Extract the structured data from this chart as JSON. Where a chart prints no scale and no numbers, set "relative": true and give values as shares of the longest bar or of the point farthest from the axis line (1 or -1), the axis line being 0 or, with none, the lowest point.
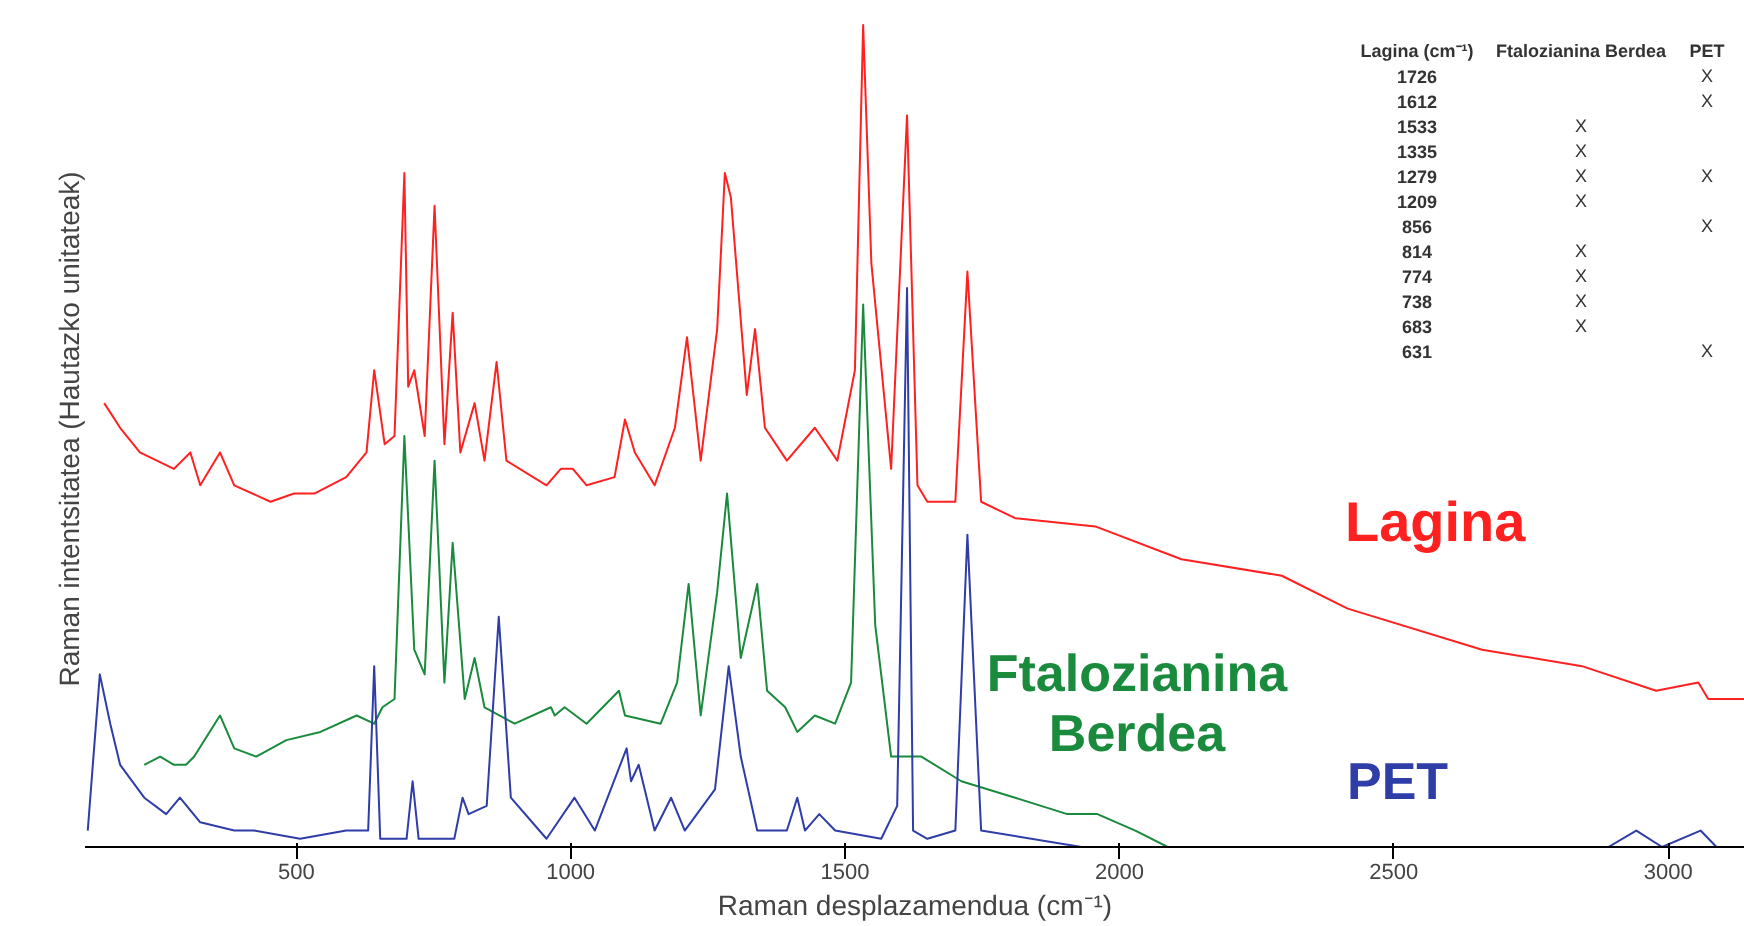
{
  "chart_data": {
    "type": "line",
    "relative": true,
    "xlabel": "Raman desplazamendua (cm⁻¹)",
    "ylabel": "Raman intentsitatea (Hautazko unitateak)",
    "xlim": [
      115,
      3140
    ],
    "xticks": [
      500,
      1000,
      1500,
      2000,
      2500,
      3000
    ],
    "grid": false,
    "marker": "none",
    "line_style": "solid",
    "series": [
      {
        "name": "Lagina",
        "color": "#ff2020",
        "x": [
          150,
          179,
          215,
          277,
          307,
          325,
          361,
          387,
          453,
          496,
          533,
          591,
          628,
          642,
          661,
          679,
          697,
          704,
          715,
          734,
          752,
          770,
          785,
          799,
          825,
          843,
          865,
          883,
          956,
          982,
          1004,
          1029,
          1080,
          1099,
          1117,
          1153,
          1190,
          1212,
          1237,
          1267,
          1281,
          1292,
          1321,
          1336,
          1354,
          1394,
          1445,
          1486,
          1518,
          1533,
          1548,
          1584,
          1613,
          1632,
          1650,
          1701,
          1723,
          1748,
          1810,
          1956,
          2113,
          2296,
          2416,
          2661,
          2843,
          2978,
          3055,
          3073,
          3140
        ],
        "values": [
          0.54,
          0.51,
          0.48,
          0.46,
          0.48,
          0.44,
          0.48,
          0.44,
          0.42,
          0.43,
          0.43,
          0.45,
          0.48,
          0.58,
          0.49,
          0.5,
          0.82,
          0.56,
          0.58,
          0.5,
          0.78,
          0.49,
          0.65,
          0.48,
          0.54,
          0.47,
          0.59,
          0.47,
          0.44,
          0.46,
          0.46,
          0.44,
          0.45,
          0.52,
          0.48,
          0.44,
          0.51,
          0.62,
          0.47,
          0.63,
          0.82,
          0.79,
          0.55,
          0.63,
          0.51,
          0.47,
          0.51,
          0.47,
          0.58,
          1.0,
          0.71,
          0.46,
          0.89,
          0.44,
          0.42,
          0.42,
          0.7,
          0.42,
          0.4,
          0.39,
          0.35,
          0.33,
          0.29,
          0.24,
          0.22,
          0.19,
          0.2,
          0.18,
          0.18
        ]
      },
      {
        "name": "Ftalozianina Berdea",
        "color": "#1a8a3c",
        "x": [
          223,
          252,
          277,
          299,
          314,
          361,
          387,
          427,
          482,
          544,
          610,
          642,
          657,
          679,
          697,
          715,
          734,
          752,
          770,
          785,
          807,
          825,
          843,
          898,
          964,
          971,
          989,
          1029,
          1088,
          1099,
          1164,
          1194,
          1215,
          1237,
          1267,
          1285,
          1310,
          1340,
          1358,
          1391,
          1413,
          1445,
          1482,
          1511,
          1533,
          1555,
          1584,
          1639,
          1712,
          1810,
          1905,
          1960,
          2029,
          2088
        ],
        "values": [
          0.1,
          0.11,
          0.1,
          0.1,
          0.11,
          0.16,
          0.12,
          0.11,
          0.13,
          0.14,
          0.16,
          0.15,
          0.17,
          0.18,
          0.5,
          0.24,
          0.21,
          0.47,
          0.2,
          0.37,
          0.18,
          0.23,
          0.17,
          0.15,
          0.17,
          0.16,
          0.17,
          0.15,
          0.19,
          0.16,
          0.15,
          0.2,
          0.32,
          0.16,
          0.31,
          0.43,
          0.23,
          0.32,
          0.19,
          0.17,
          0.14,
          0.16,
          0.15,
          0.2,
          0.66,
          0.27,
          0.11,
          0.11,
          0.08,
          0.06,
          0.04,
          0.04,
          0.02,
          0.0
        ]
      },
      {
        "name": "PET",
        "color": "#2e3da8",
        "x": [
          120,
          142,
          161,
          179,
          223,
          263,
          288,
          325,
          387,
          423,
          507,
          591,
          631,
          642,
          653,
          701,
          712,
          723,
          788,
          803,
          814,
          847,
          869,
          891,
          956,
          1007,
          1044,
          1102,
          1110,
          1124,
          1153,
          1183,
          1208,
          1263,
          1288,
          1310,
          1340,
          1394,
          1413,
          1427,
          1453,
          1482,
          1566,
          1595,
          1613,
          1624,
          1650,
          1701,
          1723,
          1748,
          1931,
          2891,
          2942,
          2989,
          3059,
          3088
        ],
        "values": [
          0.02,
          0.21,
          0.15,
          0.1,
          0.06,
          0.04,
          0.06,
          0.03,
          0.02,
          0.02,
          0.01,
          0.02,
          0.02,
          0.22,
          0.01,
          0.01,
          0.08,
          0.01,
          0.01,
          0.06,
          0.04,
          0.05,
          0.28,
          0.06,
          0.01,
          0.06,
          0.02,
          0.12,
          0.08,
          0.1,
          0.02,
          0.06,
          0.02,
          0.07,
          0.22,
          0.11,
          0.02,
          0.02,
          0.06,
          0.02,
          0.04,
          0.02,
          0.01,
          0.05,
          0.68,
          0.02,
          0.01,
          0.02,
          0.38,
          0.02,
          0.0,
          0.0,
          0.02,
          0.0,
          0.02,
          0.0
        ]
      }
    ],
    "annotations": [
      "Lagina (cm⁻¹)",
      "Ftalozianina Berdea",
      "PET",
      "1726",
      null,
      "X",
      "1612",
      null,
      "X",
      "1533",
      "X",
      null,
      "1335",
      "X",
      null,
      "1279",
      "X",
      "X",
      "1209",
      "X",
      null,
      "856",
      null,
      "X",
      "814",
      "X",
      null,
      "774",
      "X",
      null,
      "738",
      "X",
      null,
      "683",
      "X",
      null,
      "631",
      null,
      "X"
    ]
  }
}
